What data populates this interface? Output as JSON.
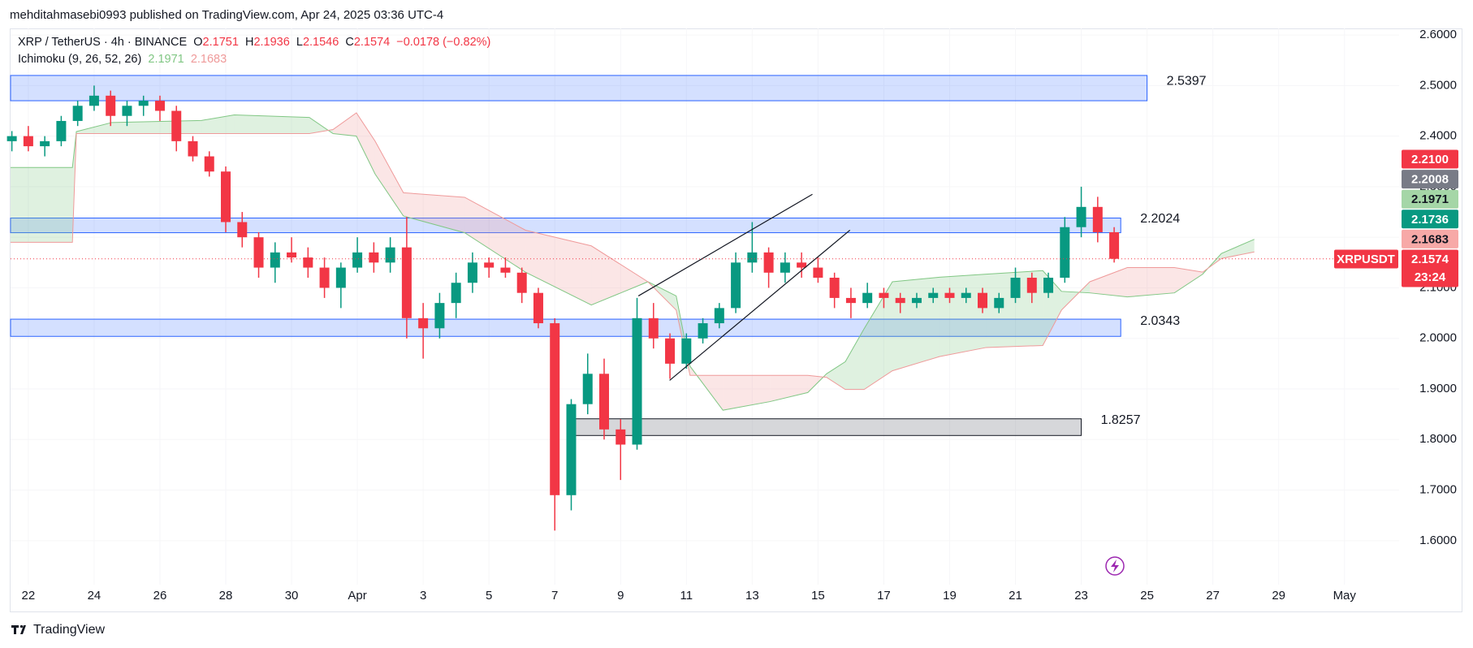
{
  "header": {
    "title": "mehditahmasebi0993 published on TradingView.com, Apr 24, 2025 03:36 UTC-4"
  },
  "legend": {
    "symbol": "XRP / TetherUS · 4h · BINANCE",
    "ohlc": [
      {
        "key": "O",
        "text": "2.1751"
      },
      {
        "key": "H",
        "text": "2.1936"
      },
      {
        "key": "L",
        "text": "2.1546"
      },
      {
        "key": "C",
        "text": "2.1574"
      }
    ],
    "change": "−0.0178 (−0.82%)",
    "indicator": "Ichimoku (9, 26, 52, 26)",
    "indicator_values": [
      "2.1971",
      "2.1683"
    ]
  },
  "footer": {
    "brand": "TradingView"
  },
  "chart_data": {
    "type": "candlestick",
    "grid": true,
    "up_color": "#089981",
    "down_color": "#f23645",
    "xlim": [
      -0.54,
      41.66
    ],
    "ylim": [
      1.513,
      2.613
    ],
    "xticks": [
      {
        "value": 0,
        "label": "22"
      },
      {
        "value": 2,
        "label": "24"
      },
      {
        "value": 4,
        "label": "26"
      },
      {
        "value": 6,
        "label": "28"
      },
      {
        "value": 8,
        "label": "30"
      },
      {
        "value": 10,
        "label": "Apr"
      },
      {
        "value": 12,
        "label": "3"
      },
      {
        "value": 14,
        "label": "5"
      },
      {
        "value": 16,
        "label": "7"
      },
      {
        "value": 18,
        "label": "9"
      },
      {
        "value": 20,
        "label": "11"
      },
      {
        "value": 22,
        "label": "13"
      },
      {
        "value": 24,
        "label": "15"
      },
      {
        "value": 26,
        "label": "17"
      },
      {
        "value": 28,
        "label": "19"
      },
      {
        "value": 30,
        "label": "21"
      },
      {
        "value": 32,
        "label": "23"
      },
      {
        "value": 34,
        "label": "25"
      },
      {
        "value": 36,
        "label": "27"
      },
      {
        "value": 38,
        "label": "29"
      },
      {
        "value": 40,
        "label": "May"
      }
    ],
    "yticks": [
      {
        "value": 1.6,
        "label": "1.6000"
      },
      {
        "value": 1.7,
        "label": "1.7000"
      },
      {
        "value": 1.8,
        "label": "1.8000"
      },
      {
        "value": 1.9,
        "label": "1.9000"
      },
      {
        "value": 2.0,
        "label": "2.0000"
      },
      {
        "value": 2.1,
        "label": "2.1000"
      },
      {
        "value": 2.2,
        "label": "2.2000"
      },
      {
        "value": 2.3,
        "label": "2.3000"
      },
      {
        "value": 2.4,
        "label": "2.4000"
      },
      {
        "value": 2.5,
        "label": "2.5000"
      },
      {
        "value": 2.6,
        "label": "2.6000"
      }
    ],
    "x": [
      -0.5,
      0,
      0.5,
      1,
      1.5,
      2,
      2.5,
      3,
      3.5,
      4,
      4.5,
      5,
      5.5,
      6,
      6.5,
      7,
      7.5,
      8,
      8.5,
      9,
      9.5,
      10,
      10.5,
      11,
      11.5,
      12,
      12.5,
      13,
      13.5,
      14,
      14.5,
      15,
      15.5,
      16,
      16.5,
      17,
      17.5,
      18,
      18.5,
      19,
      19.5,
      20,
      20.5,
      21,
      21.5,
      22,
      22.5,
      23,
      23.5,
      24,
      24.5,
      25,
      25.5,
      26,
      26.5,
      27,
      27.5,
      28,
      28.5,
      29,
      29.5,
      30,
      30.5,
      31,
      31.5,
      32,
      32.5,
      33
    ],
    "open": [
      2.39,
      2.4,
      2.38,
      2.39,
      2.43,
      2.46,
      2.48,
      2.44,
      2.46,
      2.47,
      2.45,
      2.39,
      2.36,
      2.33,
      2.23,
      2.2,
      2.14,
      2.17,
      2.16,
      2.14,
      2.1,
      2.14,
      2.17,
      2.15,
      2.18,
      2.04,
      2.02,
      2.07,
      2.11,
      2.15,
      2.14,
      2.13,
      2.09,
      2.03,
      1.69,
      1.87,
      1.93,
      1.82,
      1.79,
      2.04,
      2.0,
      1.95,
      2.0,
      2.03,
      2.06,
      2.15,
      2.17,
      2.13,
      2.15,
      2.14,
      2.12,
      2.08,
      2.07,
      2.09,
      2.08,
      2.07,
      2.08,
      2.09,
      2.08,
      2.09,
      2.06,
      2.08,
      2.12,
      2.09,
      2.12,
      2.22,
      2.26,
      2.21
    ],
    "high": [
      2.41,
      2.42,
      2.4,
      2.44,
      2.47,
      2.5,
      2.49,
      2.47,
      2.48,
      2.48,
      2.46,
      2.4,
      2.37,
      2.34,
      2.25,
      2.21,
      2.19,
      2.2,
      2.18,
      2.16,
      2.15,
      2.2,
      2.19,
      2.2,
      2.24,
      2.07,
      2.09,
      2.13,
      2.17,
      2.16,
      2.16,
      2.14,
      2.1,
      2.04,
      1.88,
      1.97,
      1.96,
      1.84,
      2.08,
      2.07,
      2.01,
      2.01,
      2.04,
      2.07,
      2.17,
      2.23,
      2.18,
      2.17,
      2.17,
      2.16,
      2.13,
      2.1,
      2.11,
      2.1,
      2.09,
      2.09,
      2.1,
      2.1,
      2.1,
      2.1,
      2.09,
      2.14,
      2.13,
      2.13,
      2.24,
      2.3,
      2.28,
      2.22
    ],
    "low": [
      2.37,
      2.37,
      2.36,
      2.38,
      2.42,
      2.45,
      2.42,
      2.42,
      2.44,
      2.43,
      2.37,
      2.35,
      2.32,
      2.21,
      2.18,
      2.12,
      2.11,
      2.15,
      2.12,
      2.08,
      2.06,
      2.13,
      2.13,
      2.13,
      2.0,
      1.96,
      2.0,
      2.04,
      2.09,
      2.12,
      2.12,
      2.07,
      2.02,
      1.62,
      1.66,
      1.85,
      1.8,
      1.72,
      1.78,
      1.98,
      1.92,
      1.94,
      1.99,
      2.02,
      2.05,
      2.13,
      2.1,
      2.11,
      2.12,
      2.11,
      2.06,
      2.04,
      2.06,
      2.06,
      2.05,
      2.06,
      2.07,
      2.07,
      2.07,
      2.05,
      2.05,
      2.07,
      2.07,
      2.08,
      2.11,
      2.2,
      2.19,
      2.15
    ],
    "close": [
      2.4,
      2.38,
      2.39,
      2.43,
      2.46,
      2.48,
      2.44,
      2.46,
      2.47,
      2.45,
      2.39,
      2.36,
      2.33,
      2.23,
      2.2,
      2.14,
      2.17,
      2.16,
      2.14,
      2.1,
      2.14,
      2.17,
      2.15,
      2.18,
      2.04,
      2.02,
      2.07,
      2.11,
      2.15,
      2.14,
      2.13,
      2.09,
      2.03,
      1.69,
      1.87,
      1.93,
      1.82,
      1.79,
      2.04,
      2.0,
      1.95,
      2.0,
      2.03,
      2.06,
      2.15,
      2.17,
      2.13,
      2.15,
      2.14,
      2.12,
      2.08,
      2.07,
      2.09,
      2.08,
      2.07,
      2.08,
      2.09,
      2.08,
      2.09,
      2.06,
      2.08,
      2.12,
      2.09,
      2.12,
      2.22,
      2.26,
      2.21,
      2.1574
    ],
    "ichimoku": {
      "span_a_color": "#81c784",
      "span_b_color": "#ef9a9a",
      "x": [
        -0.54,
        1.34,
        1.46,
        2.54,
        5.26,
        6.26,
        8.54,
        9.26,
        9.97,
        10.54,
        11.4,
        13.26,
        15.11,
        17.11,
        18.83,
        19.69,
        20.11,
        21.11,
        22.54,
        23.69,
        24.26,
        24.83,
        25.4,
        26.26,
        27.69,
        29.11,
        30.83,
        31.4,
        32.26,
        33.4,
        34.83,
        35.69,
        36.26,
        37.26
      ],
      "span_a": [
        2.338,
        2.338,
        2.409,
        2.427,
        2.431,
        2.442,
        2.437,
        2.405,
        2.4,
        2.325,
        2.242,
        2.209,
        2.131,
        2.066,
        2.112,
        2.084,
        1.945,
        1.858,
        1.875,
        1.893,
        1.93,
        1.954,
        2.019,
        2.112,
        2.121,
        2.127,
        2.134,
        2.093,
        2.09,
        2.082,
        2.09,
        2.127,
        2.168,
        2.196
      ],
      "span_b": [
        2.19,
        2.19,
        2.405,
        2.405,
        2.405,
        2.405,
        2.405,
        2.413,
        2.446,
        2.39,
        2.288,
        2.279,
        2.214,
        2.183,
        2.112,
        2.056,
        1.927,
        1.927,
        1.927,
        1.927,
        1.923,
        1.899,
        1.899,
        1.936,
        1.964,
        1.982,
        1.986,
        2.056,
        2.112,
        2.14,
        2.14,
        2.131,
        2.158,
        2.171
      ]
    },
    "zones": [
      {
        "label": 2.5397,
        "top": 2.52,
        "bottom": 2.47,
        "from": -0.54,
        "to": 34.0,
        "color": "#2962ff"
      },
      {
        "label": 2.2024,
        "top": 2.238,
        "bottom": 2.209,
        "from": -0.54,
        "to": 33.2,
        "color": "#2962ff"
      },
      {
        "label": 2.0343,
        "top": 2.038,
        "bottom": 2.004,
        "from": -0.54,
        "to": 33.2,
        "color": "#2962ff"
      },
      {
        "label": 1.8257,
        "top": 1.841,
        "bottom": 1.808,
        "from": 16.4,
        "to": 32.0,
        "color": "#787b86"
      }
    ],
    "lines": [
      {
        "x": [
          18.54,
          23.83
        ],
        "y": [
          2.084,
          2.285
        ]
      },
      {
        "x": [
          19.49,
          24.97
        ],
        "y": [
          1.917,
          2.214
        ]
      }
    ],
    "price_tags": [
      {
        "text": "2.2100",
        "color": "#f23645",
        "text_color": "#ffffff"
      },
      {
        "text": "2.2008",
        "color": "#787b86",
        "text_color": "#ffffff"
      },
      {
        "text": "2.1971",
        "color": "#a5d6a7",
        "text_color": "#131722"
      },
      {
        "text": "2.1736",
        "color": "#089981",
        "text_color": "#ffffff"
      },
      {
        "text": "2.1683",
        "color": "#f7a9a7",
        "text_color": "#131722"
      },
      {
        "text": "2.1574",
        "sub": "23:24",
        "symbol": "XRPUSDT",
        "color": "#f23645",
        "text_color": "#ffffff"
      }
    ]
  }
}
